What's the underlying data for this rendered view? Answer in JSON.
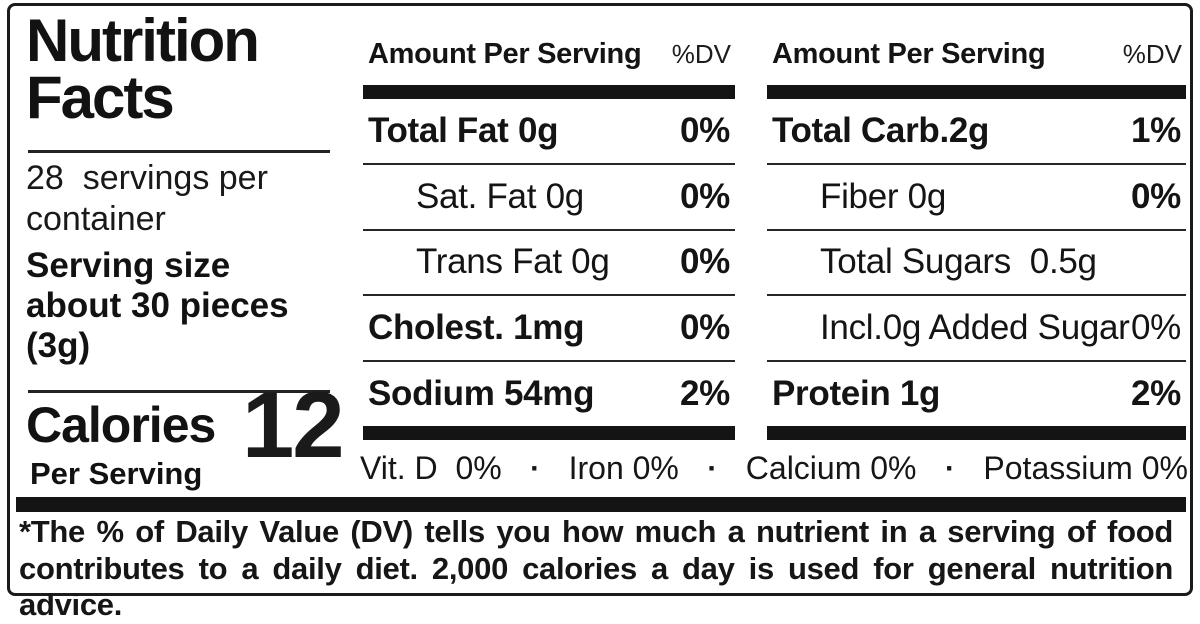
{
  "colors": {
    "text": "#141414",
    "border": "#1b1b1b",
    "bar": "#141414",
    "background": "#ffffff"
  },
  "label": {
    "title_line1": "Nutrition",
    "title_line2": "Facts",
    "servings": "28  servings per container",
    "serving_size_label": "Serving size",
    "serving_size_value": "about 30 pieces (3g)",
    "calories_label": "Calories",
    "calories_value": "12",
    "calories_sub": "Per Serving",
    "columns": [
      {
        "header": "Amount Per Serving",
        "dv_header": "%DV",
        "rows": [
          {
            "name": "Total Fat 0g",
            "dv": "0%"
          },
          {
            "name": "Sat. Fat 0g",
            "dv": "0%"
          },
          {
            "name": "Trans Fat 0g",
            "dv": "0%"
          },
          {
            "name": "Cholest. 1mg",
            "dv": "0%"
          },
          {
            "name": "Sodium 54mg",
            "dv": "2%"
          }
        ]
      },
      {
        "header": "Amount Per Serving",
        "dv_header": "%DV",
        "rows": [
          {
            "name": "Total Carb.2g",
            "dv": "1%"
          },
          {
            "name": "Fiber 0g",
            "dv": "0%"
          },
          {
            "name": "Total Sugars  0.5g",
            "dv": ""
          },
          {
            "name": "Incl.0g Added Sugar",
            "dv": "0%"
          },
          {
            "name": "Protein 1g",
            "dv": "2%"
          }
        ]
      }
    ],
    "micros": {
      "separator": "·",
      "items": [
        "Vit. D  0%",
        "Iron 0%",
        "Calcium 0%",
        "Potassium 0%"
      ]
    },
    "footnote": "*The % of Daily Value (DV) tells you how much a nutrient in a serving of food contributes to a daily diet. 2,000 calories a day is used for general nutrition advice."
  }
}
